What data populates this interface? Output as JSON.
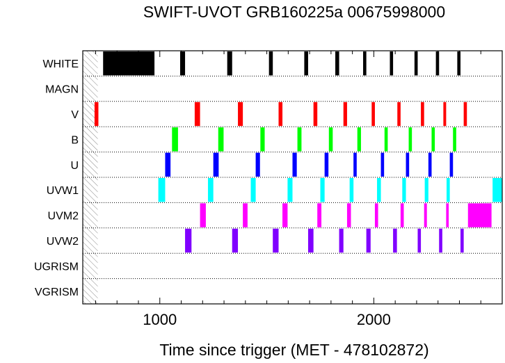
{
  "chart_data": {
    "type": "timeline",
    "title": "SWIFT-UVOT GRB160225a 00675998000",
    "xlabel": "Time since trigger (MET - 478102872)",
    "xlim": [
      640,
      2600
    ],
    "xticks": [
      1000,
      2000
    ],
    "minor_tick_step": 100,
    "grid": "dotted horizontal row separators",
    "hatched_region": [
      640,
      710
    ],
    "rows": [
      {
        "label": "WHITE",
        "color": "#000000",
        "segments": [
          [
            735,
            975
          ],
          [
            1095,
            1118
          ],
          [
            1315,
            1338
          ],
          [
            1510,
            1528
          ],
          [
            1675,
            1693
          ],
          [
            1820,
            1838
          ],
          [
            1950,
            1965
          ],
          [
            2075,
            2090
          ],
          [
            2190,
            2205
          ],
          [
            2290,
            2305
          ],
          [
            2390,
            2405
          ]
        ]
      },
      {
        "label": "MAGN",
        "color": "#000000",
        "segments": []
      },
      {
        "label": "V",
        "color": "#ff0000",
        "segments": [
          [
            695,
            713
          ],
          [
            1163,
            1188
          ],
          [
            1365,
            1388
          ],
          [
            1555,
            1573
          ],
          [
            1718,
            1736
          ],
          [
            1858,
            1875
          ],
          [
            1990,
            2005
          ],
          [
            2110,
            2125
          ],
          [
            2220,
            2235
          ],
          [
            2325,
            2338
          ],
          [
            2420,
            2435
          ]
        ]
      },
      {
        "label": "B",
        "color": "#00ff00",
        "segments": [
          [
            1057,
            1085
          ],
          [
            1273,
            1298
          ],
          [
            1470,
            1490
          ],
          [
            1643,
            1662
          ],
          [
            1790,
            1808
          ],
          [
            1923,
            1940
          ],
          [
            2050,
            2065
          ],
          [
            2163,
            2178
          ],
          [
            2270,
            2285
          ],
          [
            2370,
            2385
          ]
        ]
      },
      {
        "label": "U",
        "color": "#0000ff",
        "segments": [
          [
            1025,
            1050
          ],
          [
            1250,
            1275
          ],
          [
            1448,
            1468
          ],
          [
            1620,
            1640
          ],
          [
            1770,
            1788
          ],
          [
            1905,
            1920
          ],
          [
            2033,
            2048
          ],
          [
            2150,
            2165
          ],
          [
            2255,
            2270
          ],
          [
            2355,
            2370
          ]
        ]
      },
      {
        "label": "UVW1",
        "color": "#00ffff",
        "segments": [
          [
            993,
            1025
          ],
          [
            1225,
            1250
          ],
          [
            1425,
            1448
          ],
          [
            1597,
            1620
          ],
          [
            1750,
            1770
          ],
          [
            1887,
            1905
          ],
          [
            2015,
            2033
          ],
          [
            2133,
            2150
          ],
          [
            2238,
            2255
          ],
          [
            2340,
            2355
          ],
          [
            2555,
            2615
          ]
        ]
      },
      {
        "label": "UVM2",
        "color": "#ff00ff",
        "segments": [
          [
            1188,
            1215
          ],
          [
            1388,
            1410
          ],
          [
            1573,
            1597
          ],
          [
            1736,
            1755
          ],
          [
            1875,
            1893
          ],
          [
            2005,
            2020
          ],
          [
            2125,
            2140
          ],
          [
            2235,
            2248
          ],
          [
            2338,
            2350
          ],
          [
            2440,
            2550
          ]
        ]
      },
      {
        "label": "UVW2",
        "color": "#8000ff",
        "segments": [
          [
            1118,
            1148
          ],
          [
            1338,
            1365
          ],
          [
            1528,
            1555
          ],
          [
            1693,
            1718
          ],
          [
            1838,
            1858
          ],
          [
            1965,
            1985
          ],
          [
            2090,
            2108
          ],
          [
            2205,
            2220
          ],
          [
            2305,
            2320
          ],
          [
            2405,
            2420
          ]
        ]
      },
      {
        "label": "UGRISM",
        "color": "#000000",
        "segments": []
      },
      {
        "label": "VGRISM",
        "color": "#000000",
        "segments": []
      }
    ]
  }
}
